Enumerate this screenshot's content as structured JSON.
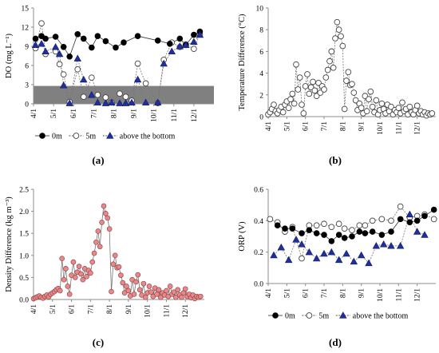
{
  "months": [
    "4/1",
    "5/1",
    "6/1",
    "7/1",
    "8/1",
    "9/1",
    "10/1",
    "11/1",
    "12/1"
  ],
  "chart_data": [
    {
      "type": "line",
      "panel_label": "(a)",
      "ylabel": "DO (mg L⁻¹)",
      "ylim": [
        0,
        15
      ],
      "yticks": [
        0,
        3,
        6,
        9,
        12,
        15
      ],
      "xlim": [
        0,
        9
      ],
      "shaded_band": [
        0,
        2.8
      ],
      "series": [
        {
          "name": "0m",
          "marker": "filled-circle",
          "x": [
            0.1,
            0.4,
            0.6,
            1.1,
            1.5,
            1.8,
            2.2,
            2.5,
            2.9,
            3.2,
            3.6,
            4.1,
            4.5,
            5.2,
            6.2,
            6.8,
            7.3,
            7.6,
            8.0,
            8.3
          ],
          "y": [
            10.2,
            10.6,
            10.2,
            10.5,
            8.9,
            7.4,
            10.9,
            10.2,
            8.8,
            10.6,
            9.8,
            8.8,
            9.6,
            10.6,
            9.9,
            9.4,
            10.2,
            9.2,
            10.8,
            11.3
          ]
        },
        {
          "name": "5m",
          "marker": "open-circle",
          "x": [
            0.1,
            0.4,
            0.6,
            1.1,
            1.3,
            1.5,
            1.8,
            2.2,
            2.5,
            2.9,
            3.2,
            3.6,
            3.9,
            4.3,
            4.6,
            4.9,
            5.2,
            5.6,
            6.2,
            6.5,
            6.9,
            7.3,
            7.6,
            8.0,
            8.3
          ],
          "y": [
            8.7,
            12.6,
            7.8,
            8.2,
            6.2,
            4.6,
            0.3,
            5.4,
            1.1,
            4.1,
            1.4,
            1.0,
            0.2,
            1.6,
            1.1,
            0.5,
            6.3,
            3.2,
            0.1,
            6.9,
            9.6,
            8.9,
            9.3,
            8.6,
            10.9
          ]
        },
        {
          "name": "above the bottom",
          "marker": "filled-triangle",
          "x": [
            0.1,
            0.4,
            0.6,
            1.1,
            1.3,
            1.5,
            1.8,
            2.2,
            2.5,
            2.9,
            3.2,
            3.6,
            3.9,
            4.3,
            4.6,
            4.9,
            5.2,
            5.6,
            6.2,
            6.5,
            6.9,
            7.3,
            7.6,
            8.0,
            8.3
          ],
          "y": [
            9.2,
            9.4,
            8.2,
            8.9,
            7.8,
            2.9,
            0.1,
            7.1,
            3.8,
            1.4,
            0.2,
            0.1,
            0.2,
            0.1,
            0.1,
            0.2,
            3.8,
            0.2,
            0.2,
            6.3,
            8.2,
            9.0,
            9.2,
            9.7,
            10.8
          ]
        }
      ]
    },
    {
      "type": "line",
      "panel_label": "(b)",
      "ylabel": "Temperature Difference (°C)",
      "ylim": [
        0,
        10
      ],
      "yticks": [
        0,
        2,
        4,
        6,
        8,
        10
      ],
      "xlim": [
        0,
        9
      ],
      "series": [
        {
          "name": "",
          "marker": "open-circle",
          "x": [
            0.0,
            0.1,
            0.2,
            0.3,
            0.4,
            0.5,
            0.6,
            0.7,
            0.8,
            0.9,
            1.0,
            1.1,
            1.2,
            1.3,
            1.4,
            1.5,
            1.6,
            1.7,
            1.8,
            1.9,
            2.0,
            2.1,
            2.2,
            2.3,
            2.4,
            2.5,
            2.6,
            2.7,
            2.8,
            2.9,
            3.0,
            3.1,
            3.2,
            3.3,
            3.4,
            3.5,
            3.6,
            3.7,
            3.8,
            3.9,
            4.0,
            4.1,
            4.2,
            4.3,
            4.4,
            4.5,
            4.6,
            4.7,
            4.8,
            4.9,
            5.0,
            5.1,
            5.2,
            5.3,
            5.4,
            5.5,
            5.6,
            5.7,
            5.8,
            5.9,
            6.0,
            6.1,
            6.2,
            6.3,
            6.4,
            6.5,
            6.6,
            6.7,
            6.8,
            6.9,
            7.0,
            7.1,
            7.2,
            7.3,
            7.4,
            7.5,
            7.6,
            7.7,
            7.8,
            7.9,
            8.0,
            8.1,
            8.2,
            8.3,
            8.4,
            8.5,
            8.6,
            8.7,
            8.8
          ],
          "y": [
            0.2,
            0.4,
            0.7,
            1.1,
            0.5,
            0.3,
            0.6,
            0.9,
            0.4,
            1.1,
            1.4,
            0.8,
            1.6,
            2.1,
            1.2,
            4.8,
            2.5,
            3.6,
            1.1,
            0.3,
            2.8,
            3.9,
            2.1,
            2.7,
            3.2,
            2.4,
            1.9,
            3.1,
            2.2,
            2.8,
            2.5,
            3.6,
            4.3,
            5.1,
            6.0,
            4.5,
            7.2,
            8.7,
            8.0,
            7.4,
            6.5,
            0.7,
            3.3,
            4.1,
            2.9,
            3.0,
            2.2,
            1.5,
            0.6,
            1.2,
            0.8,
            0.3,
            1.9,
            0.5,
            1.6,
            2.3,
            0.9,
            0.4,
            1.5,
            0.2,
            0.6,
            1.2,
            0.7,
            0.3,
            1.1,
            0.5,
            0.9,
            0.2,
            0.6,
            0.4,
            0.8,
            0.3,
            1.3,
            0.5,
            0.7,
            0.2,
            0.9,
            0.4,
            0.2,
            0.6,
            1.0,
            0.3,
            0.5,
            0.2,
            0.4,
            0.1,
            0.3,
            0.2,
            0.3
          ]
        }
      ]
    },
    {
      "type": "line",
      "panel_label": "(c)",
      "ylabel": "Density Difference (kg m⁻³)",
      "ylim": [
        0,
        2.5
      ],
      "yticks": [
        0.0,
        0.5,
        1.0,
        1.5,
        2.0,
        2.5
      ],
      "xlim": [
        0,
        9
      ],
      "series": [
        {
          "name": "",
          "marker": "filled-circle-pink",
          "x": [
            0.0,
            0.1,
            0.2,
            0.3,
            0.4,
            0.5,
            0.6,
            0.7,
            0.8,
            0.9,
            1.0,
            1.1,
            1.2,
            1.3,
            1.4,
            1.5,
            1.6,
            1.7,
            1.8,
            1.9,
            2.0,
            2.1,
            2.2,
            2.3,
            2.4,
            2.5,
            2.6,
            2.7,
            2.8,
            2.9,
            3.0,
            3.1,
            3.2,
            3.3,
            3.4,
            3.5,
            3.6,
            3.7,
            3.8,
            3.9,
            4.0,
            4.1,
            4.2,
            4.3,
            4.4,
            4.5,
            4.6,
            4.7,
            4.8,
            4.9,
            5.0,
            5.1,
            5.2,
            5.3,
            5.4,
            5.5,
            5.6,
            5.7,
            5.8,
            5.9,
            6.0,
            6.1,
            6.2,
            6.3,
            6.4,
            6.5,
            6.6,
            6.7,
            6.8,
            6.9,
            7.0,
            7.1,
            7.2,
            7.3,
            7.4,
            7.5,
            7.6,
            7.7,
            7.8,
            7.9,
            8.0,
            8.1,
            8.2,
            8.3,
            8.4,
            8.5,
            8.6,
            8.7,
            8.8
          ],
          "y": [
            0.02,
            0.04,
            0.06,
            0.08,
            0.05,
            0.03,
            0.07,
            0.1,
            0.06,
            0.12,
            0.15,
            0.18,
            0.22,
            0.25,
            0.2,
            0.93,
            0.45,
            0.7,
            0.3,
            0.12,
            0.55,
            0.85,
            0.5,
            0.62,
            0.75,
            0.58,
            0.45,
            0.7,
            0.52,
            0.66,
            0.6,
            0.85,
            1.05,
            1.3,
            1.55,
            1.2,
            1.75,
            2.12,
            1.95,
            1.85,
            1.6,
            0.18,
            0.8,
            1.0,
            0.72,
            0.74,
            0.55,
            0.38,
            0.15,
            0.3,
            0.2,
            0.08,
            0.45,
            0.12,
            0.4,
            0.56,
            0.22,
            0.1,
            0.36,
            0.05,
            0.15,
            0.3,
            0.17,
            0.07,
            0.26,
            0.12,
            0.22,
            0.05,
            0.15,
            0.1,
            0.2,
            0.07,
            0.3,
            0.12,
            0.17,
            0.05,
            0.22,
            0.1,
            0.05,
            0.15,
            0.24,
            0.07,
            0.12,
            0.04,
            0.1,
            0.02,
            0.07,
            0.05,
            0.07
          ]
        }
      ]
    },
    {
      "type": "line",
      "panel_label": "(d)",
      "ylabel": "ORP (V)",
      "ylim": [
        0,
        0.6
      ],
      "yticks": [
        0.0,
        0.2,
        0.4,
        0.6
      ],
      "xlim": [
        0,
        9
      ],
      "series": [
        {
          "name": "0m",
          "marker": "filled-circle",
          "x": [
            0.5,
            0.9,
            1.3,
            1.8,
            2.2,
            2.6,
            3.0,
            3.4,
            3.8,
            4.1,
            4.5,
            4.9,
            5.2,
            5.6,
            6.1,
            6.6,
            7.1,
            7.6,
            8.0,
            8.4,
            8.9
          ],
          "y": [
            0.37,
            0.35,
            0.35,
            0.32,
            0.34,
            0.32,
            0.31,
            0.27,
            0.31,
            0.29,
            0.3,
            0.33,
            0.32,
            0.33,
            0.31,
            0.33,
            0.41,
            0.39,
            0.4,
            0.43,
            0.47
          ]
        },
        {
          "name": "5m",
          "marker": "open-circle",
          "x": [
            0.1,
            0.5,
            0.9,
            1.3,
            1.8,
            2.2,
            2.6,
            3.0,
            3.4,
            3.8,
            4.1,
            4.5,
            4.9,
            5.2,
            5.6,
            6.1,
            6.6,
            7.1,
            7.6,
            8.0,
            8.4,
            8.9
          ],
          "y": [
            0.41,
            0.39,
            0.33,
            0.36,
            0.16,
            0.37,
            0.37,
            0.38,
            0.36,
            0.38,
            0.35,
            0.34,
            0.37,
            0.37,
            0.4,
            0.41,
            0.4,
            0.49,
            0.42,
            0.43,
            0.44,
            0.41
          ]
        },
        {
          "name": "above the bottom",
          "marker": "filled-triangle",
          "x": [
            0.3,
            0.7,
            1.1,
            1.5,
            1.8,
            2.2,
            2.6,
            3.0,
            3.4,
            3.8,
            4.2,
            4.6,
            5.0,
            5.4,
            5.8,
            6.2,
            6.6,
            7.1,
            7.6,
            8.0,
            8.4
          ],
          "y": [
            0.18,
            0.23,
            0.15,
            0.28,
            0.25,
            0.2,
            0.16,
            0.19,
            0.2,
            0.15,
            0.19,
            0.14,
            0.18,
            0.13,
            0.24,
            0.25,
            0.24,
            0.24,
            0.44,
            0.33,
            0.31
          ]
        }
      ]
    }
  ]
}
